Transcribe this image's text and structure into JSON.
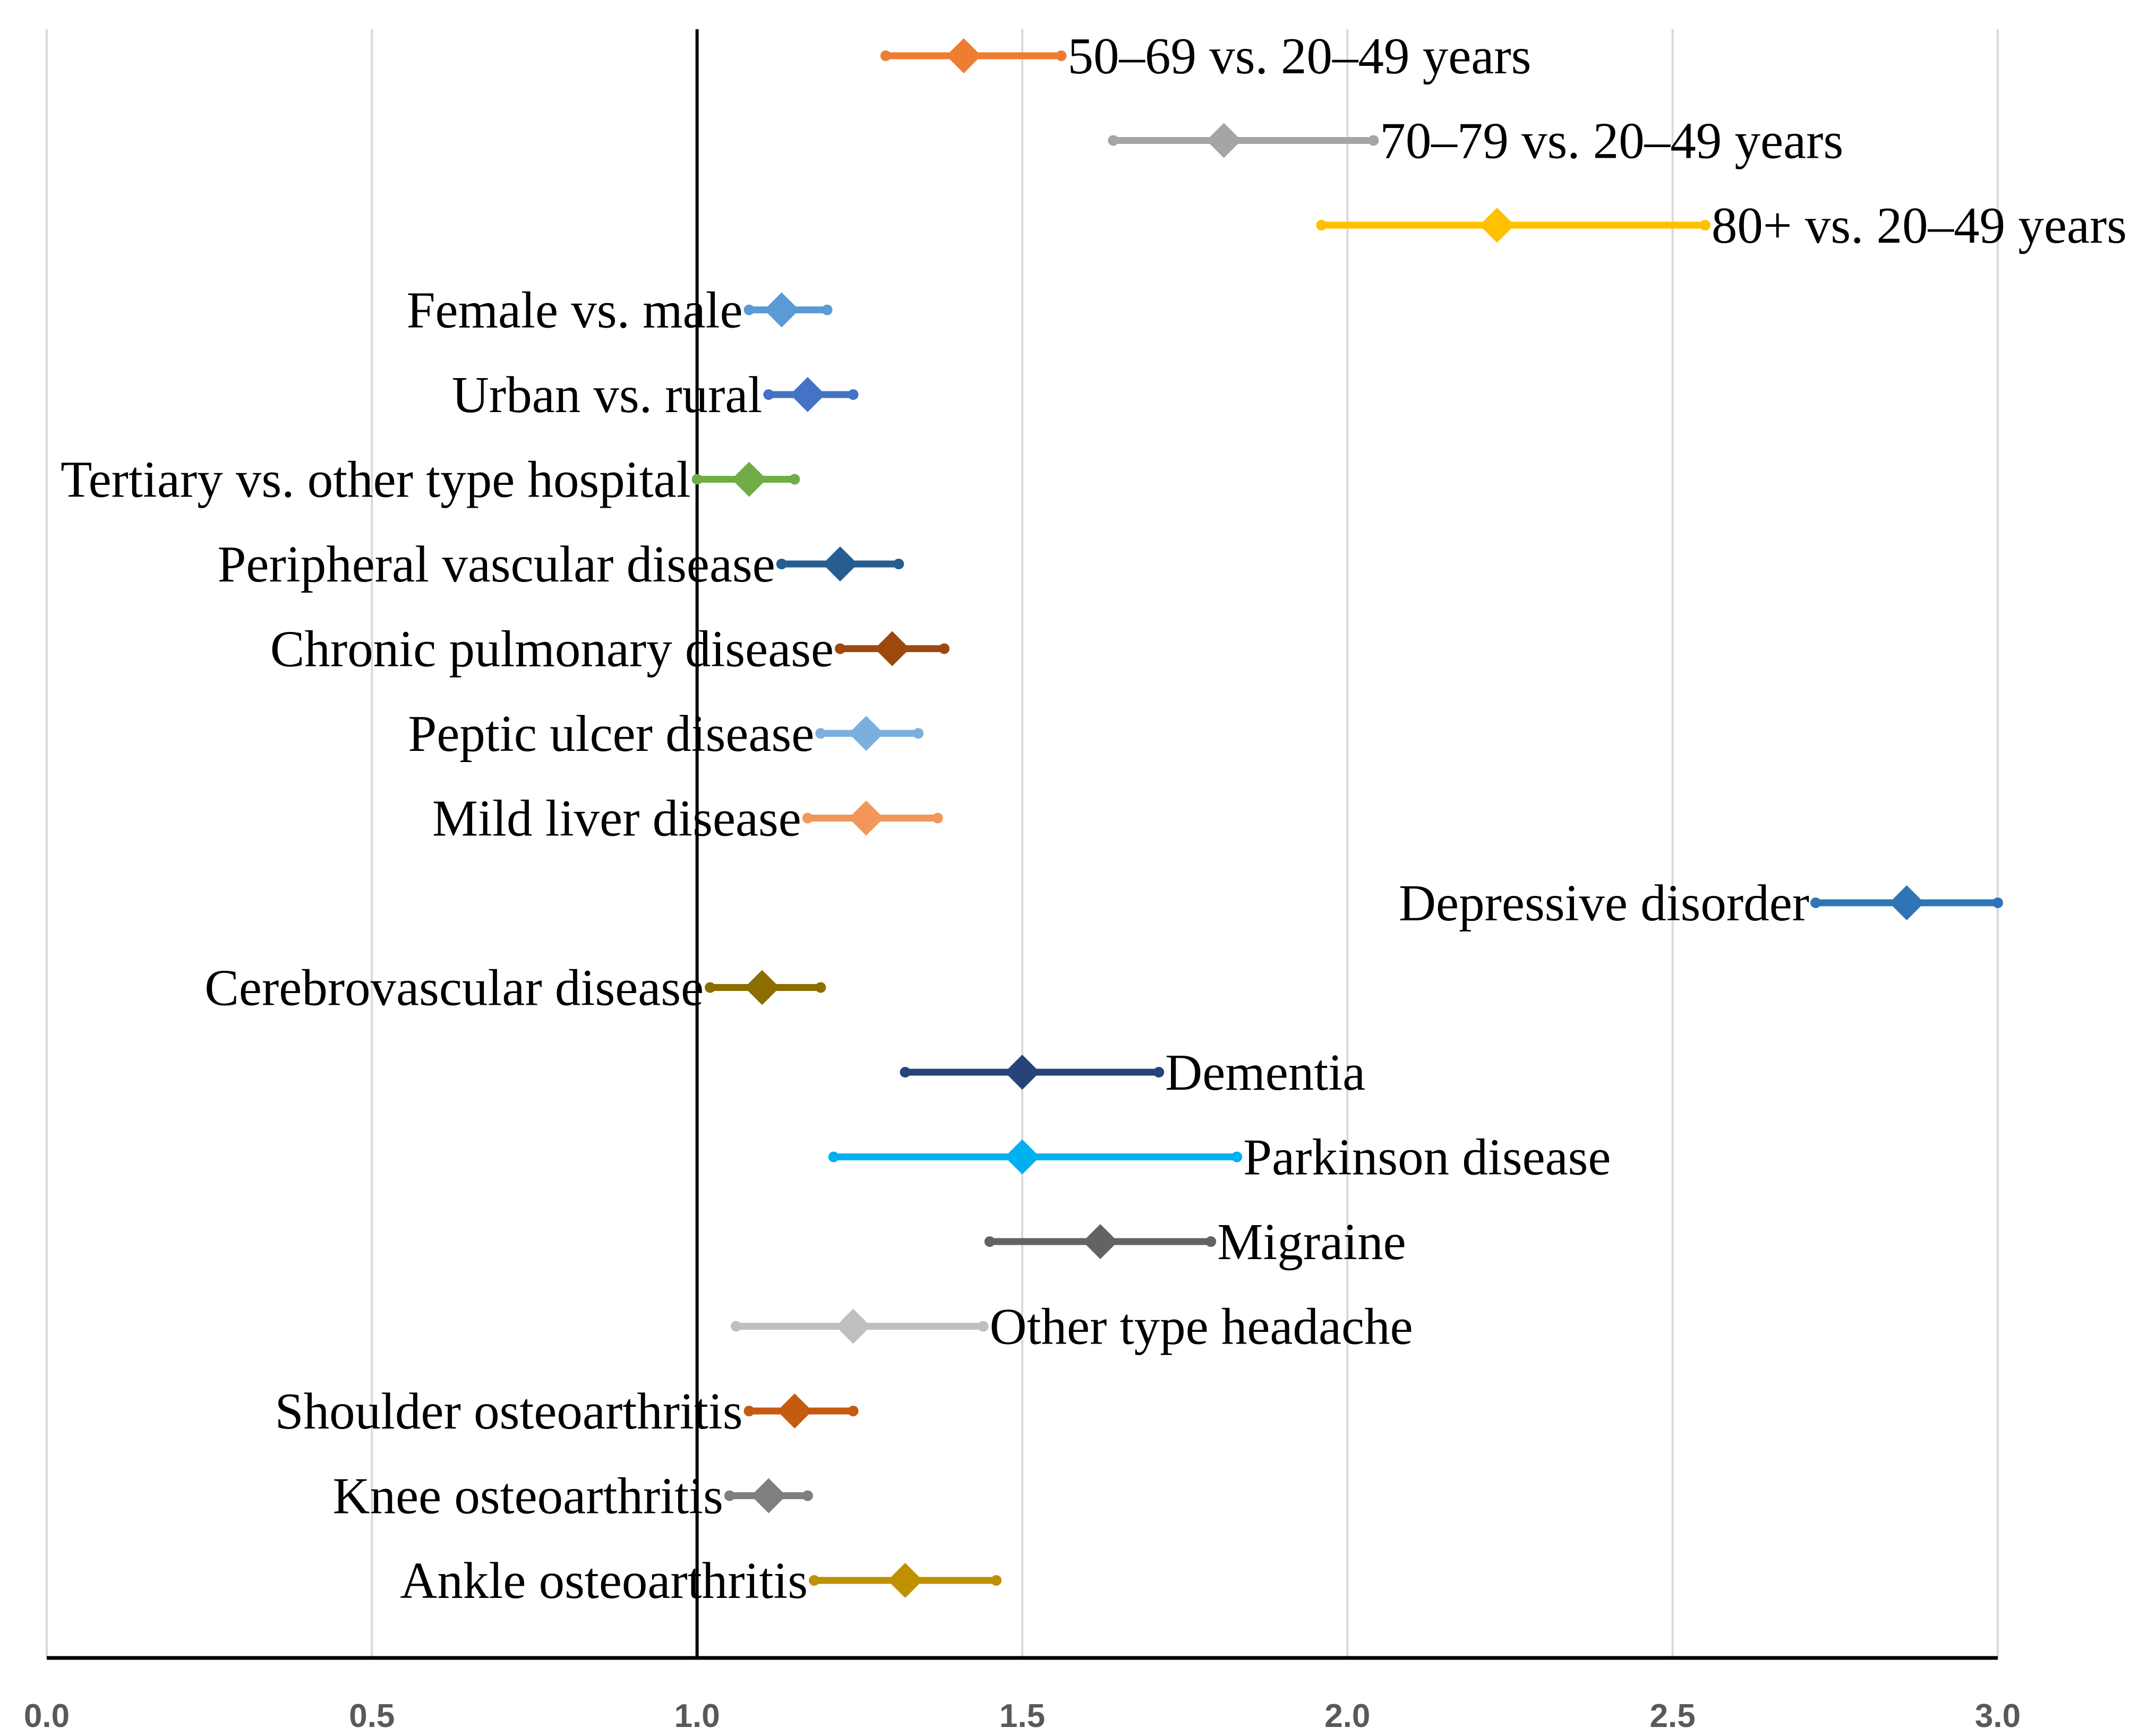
{
  "chart_data": {
    "type": "forest",
    "title": "",
    "xlabel": "",
    "ylabel": "",
    "xlim": [
      0,
      3
    ],
    "xticks": [
      "0.0",
      "0.5",
      "1.0",
      "1.5",
      "2.0",
      "2.5",
      "3.0"
    ],
    "reference_value": 1.0,
    "grid": true,
    "rows": [
      {
        "label": "50–69 vs. 20–49 years",
        "estimate": 1.41,
        "lower": 1.29,
        "upper": 1.56,
        "color": "#ED7D31",
        "label_side": "right"
      },
      {
        "label": "70–79 vs. 20–49 years",
        "estimate": 1.81,
        "lower": 1.64,
        "upper": 2.04,
        "color": "#A5A5A5",
        "label_side": "right"
      },
      {
        "label": "80+ vs. 20–49 years",
        "estimate": 2.23,
        "lower": 1.96,
        "upper": 2.55,
        "color": "#FFC000",
        "label_side": "right"
      },
      {
        "label": "Female vs. male",
        "estimate": 1.13,
        "lower": 1.08,
        "upper": 1.2,
        "color": "#5B9BD5",
        "label_side": "left"
      },
      {
        "label": "Urban vs. rural",
        "estimate": 1.17,
        "lower": 1.11,
        "upper": 1.24,
        "color": "#4472C4",
        "label_side": "left"
      },
      {
        "label": "Tertiary vs. other type hospital",
        "estimate": 1.08,
        "lower": 1.0,
        "upper": 1.15,
        "color": "#70AD47",
        "label_side": "left"
      },
      {
        "label": "Peripheral vascular disease",
        "estimate": 1.22,
        "lower": 1.13,
        "upper": 1.31,
        "color": "#255E91",
        "label_side": "left"
      },
      {
        "label": "Chronic pulmonary disease",
        "estimate": 1.3,
        "lower": 1.22,
        "upper": 1.38,
        "color": "#9E480E",
        "label_side": "left"
      },
      {
        "label": "Peptic ulcer disease",
        "estimate": 1.26,
        "lower": 1.19,
        "upper": 1.34,
        "color": "#7CAFDD",
        "label_side": "left"
      },
      {
        "label": "Mild liver disease",
        "estimate": 1.26,
        "lower": 1.17,
        "upper": 1.37,
        "color": "#F1975A",
        "label_side": "left"
      },
      {
        "label": "Depressive disorder",
        "estimate": 2.86,
        "lower": 2.72,
        "upper": 3.0,
        "color": "#2E75B6",
        "label_side": "left"
      },
      {
        "label": "Cerebrovascular disease",
        "estimate": 1.1,
        "lower": 1.02,
        "upper": 1.19,
        "color": "#8C6D00",
        "label_side": "left"
      },
      {
        "label": "Dementia",
        "estimate": 1.5,
        "lower": 1.32,
        "upper": 1.71,
        "color": "#264478",
        "label_side": "right"
      },
      {
        "label": "Parkinson disease",
        "estimate": 1.5,
        "lower": 1.21,
        "upper": 1.83,
        "color": "#00B0F0",
        "label_side": "right"
      },
      {
        "label": "Migraine",
        "estimate": 1.62,
        "lower": 1.45,
        "upper": 1.79,
        "color": "#636363",
        "label_side": "right"
      },
      {
        "label": "Other type headache",
        "estimate": 1.24,
        "lower": 1.06,
        "upper": 1.44,
        "color": "#BFBFBF",
        "label_side": "right"
      },
      {
        "label": "Shoulder osteoarthritis",
        "estimate": 1.15,
        "lower": 1.08,
        "upper": 1.24,
        "color": "#C55A11",
        "label_side": "left"
      },
      {
        "label": "Knee osteoarthritis",
        "estimate": 1.11,
        "lower": 1.05,
        "upper": 1.17,
        "color": "#7F7F7F",
        "label_side": "left"
      },
      {
        "label": "Ankle osteoarthritis",
        "estimate": 1.32,
        "lower": 1.18,
        "upper": 1.46,
        "color": "#BF9000",
        "label_side": "left"
      }
    ]
  }
}
